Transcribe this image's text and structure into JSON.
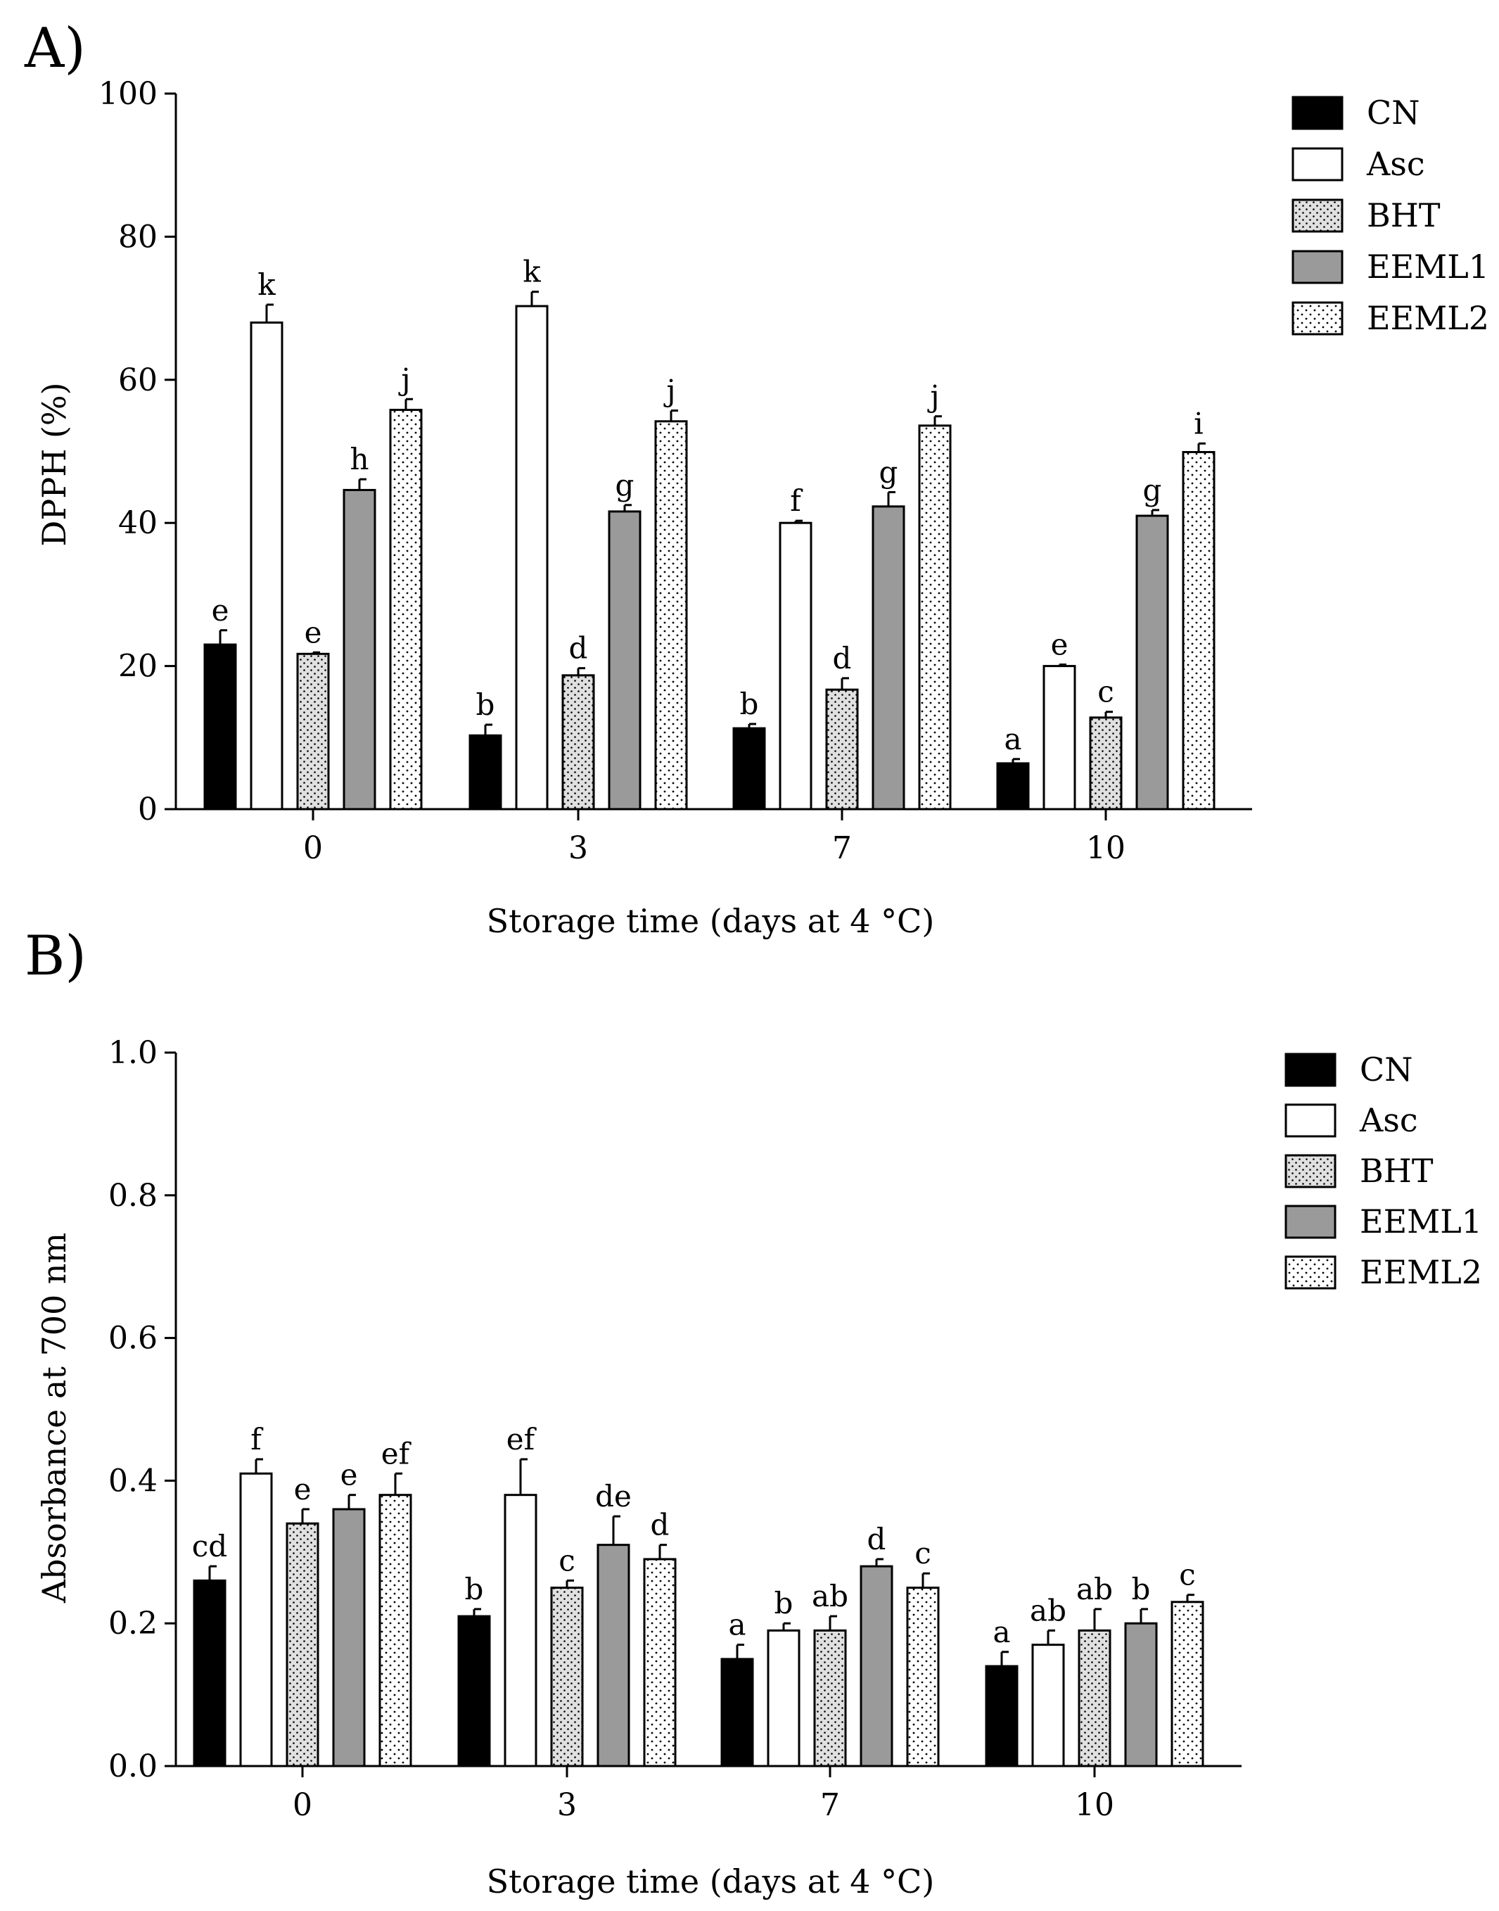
{
  "chart_data": [
    {
      "type": "bar",
      "panel_label": "A)",
      "xlabel": "Storage time (days at 4 °C)",
      "ylabel": "DPPH (%)",
      "ylim": [
        0,
        100
      ],
      "yticks": [
        "0",
        "20",
        "40",
        "60",
        "80",
        "100"
      ],
      "categories": [
        "0",
        "3",
        "7",
        "10"
      ],
      "legend_position": "top-right",
      "series": [
        {
          "name": "CN",
          "style": "black",
          "values": [
            23,
            10.3,
            11.3,
            6.4
          ],
          "errors": [
            2,
            1.5,
            0.6,
            0.6
          ],
          "labels": [
            "e",
            "b",
            "b",
            "a"
          ]
        },
        {
          "name": "Asc",
          "style": "white",
          "values": [
            68,
            70.3,
            40,
            20
          ],
          "errors": [
            2.5,
            2,
            0.3,
            0.2
          ],
          "labels": [
            "k",
            "k",
            "f",
            "e"
          ]
        },
        {
          "name": "BHT",
          "style": "light-dots",
          "values": [
            21.7,
            18.7,
            16.7,
            12.8
          ],
          "errors": [
            0.2,
            1,
            1.6,
            0.8
          ],
          "labels": [
            "e",
            "d",
            "d",
            "c"
          ]
        },
        {
          "name": "EEML1",
          "style": "gray",
          "values": [
            44.6,
            41.6,
            42.3,
            41
          ],
          "errors": [
            1.5,
            0.9,
            2,
            0.8
          ],
          "labels": [
            "h",
            "g",
            "g",
            "g"
          ]
        },
        {
          "name": "EEML2",
          "style": "white-dots",
          "values": [
            55.8,
            54.2,
            53.6,
            49.9
          ],
          "errors": [
            1.5,
            1.5,
            1.3,
            1.2
          ],
          "labels": [
            "j",
            "j",
            "j",
            "i"
          ]
        }
      ]
    },
    {
      "type": "bar",
      "panel_label": "B)",
      "xlabel": "Storage time (days at 4 °C)",
      "ylabel": "Absorbance at 700 nm",
      "ylim": [
        0,
        1.0
      ],
      "yticks": [
        "0.0",
        "0.2",
        "0.4",
        "0.6",
        "0.8",
        "1.0"
      ],
      "categories": [
        "0",
        "3",
        "7",
        "10"
      ],
      "legend_position": "top-right",
      "series": [
        {
          "name": "CN",
          "style": "black",
          "values": [
            0.26,
            0.21,
            0.15,
            0.14
          ],
          "errors": [
            0.02,
            0.01,
            0.02,
            0.02
          ],
          "labels": [
            "cd",
            "b",
            "a",
            "a"
          ]
        },
        {
          "name": "Asc",
          "style": "white",
          "values": [
            0.41,
            0.38,
            0.19,
            0.17
          ],
          "errors": [
            0.02,
            0.05,
            0.01,
            0.02
          ],
          "labels": [
            "f",
            "ef",
            "b",
            "ab"
          ]
        },
        {
          "name": "BHT",
          "style": "light-dots",
          "values": [
            0.34,
            0.25,
            0.19,
            0.19
          ],
          "errors": [
            0.02,
            0.01,
            0.02,
            0.03
          ],
          "labels": [
            "e",
            "c",
            "ab",
            "ab"
          ]
        },
        {
          "name": "EEML1",
          "style": "gray",
          "values": [
            0.36,
            0.31,
            0.28,
            0.2
          ],
          "errors": [
            0.02,
            0.04,
            0.01,
            0.02
          ],
          "labels": [
            "e",
            "de",
            "d",
            "b"
          ]
        },
        {
          "name": "EEML2",
          "style": "white-dots",
          "values": [
            0.38,
            0.29,
            0.25,
            0.23
          ],
          "errors": [
            0.03,
            0.02,
            0.02,
            0.01
          ],
          "labels": [
            "ef",
            "d",
            "c",
            "c"
          ]
        }
      ]
    }
  ],
  "colors": {
    "black": "#000000",
    "white": "#ffffff",
    "light_dots_fill": "#e0e0e0",
    "gray": "#9a9a9a",
    "dot": "#000000"
  }
}
